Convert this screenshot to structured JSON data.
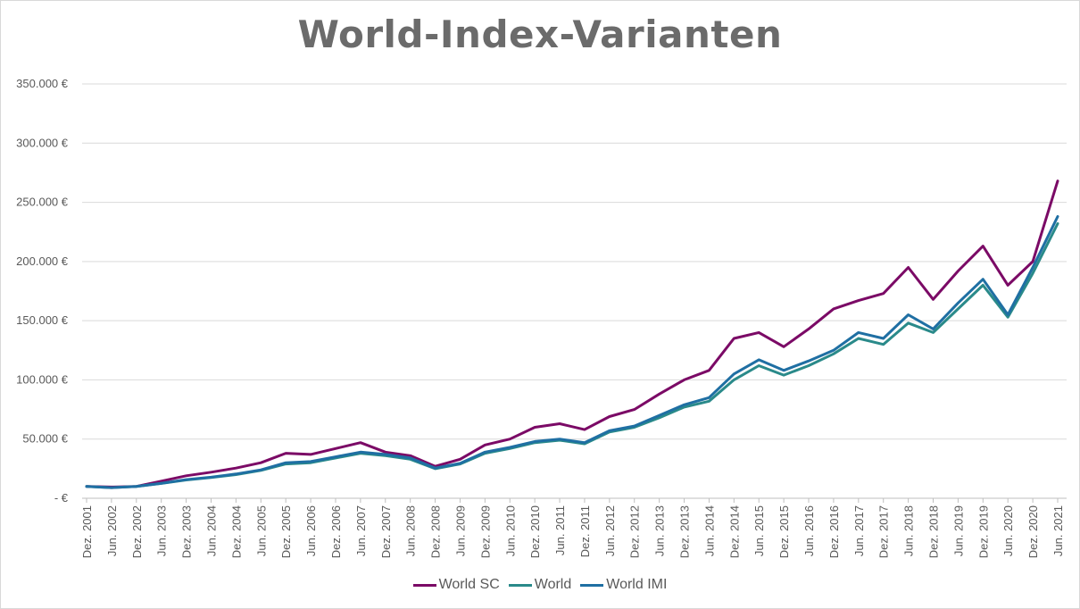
{
  "title": "World-Index-Varianten",
  "colors": {
    "world_sc": "#7b0a66",
    "world": "#2a8a8a",
    "world_imi": "#1f6fa3",
    "grid": "#d9d9d9"
  },
  "chart_data": {
    "type": "line",
    "title": "World-Index-Varianten",
    "xlabel": "",
    "ylabel": "",
    "ylim": [
      0,
      350000
    ],
    "y_tick_labels": [
      "- €",
      "50.000 €",
      "100.000 €",
      "150.000 €",
      "200.000 €",
      "250.000 €",
      "300.000 €",
      "350.000 €"
    ],
    "x_tick_labels": [
      "Dez. 2001",
      "Jun. 2002",
      "Dez. 2002",
      "Jun. 2003",
      "Dez. 2003",
      "Jun. 2004",
      "Dez. 2004",
      "Jun. 2005",
      "Dez. 2005",
      "Jun. 2006",
      "Dez. 2006",
      "Jun. 2007",
      "Dez. 2007",
      "Jun. 2008",
      "Dez. 2008",
      "Jun. 2009",
      "Dez. 2009",
      "Jun. 2010",
      "Dez. 2010",
      "Jun. 2011",
      "Dez. 2011",
      "Jun. 2012",
      "Dez. 2012",
      "Jun. 2013",
      "Dez. 2013",
      "Jun. 2014",
      "Dez. 2014",
      "Jun. 2015",
      "Dez. 2015",
      "Jun. 2016",
      "Dez. 2016",
      "Jun. 2017",
      "Dez. 2017",
      "Jun. 2018",
      "Dez. 2018",
      "Jun. 2019",
      "Dez. 2019",
      "Jun. 2020",
      "Dez. 2020",
      "Jun. 2021"
    ],
    "grid": true,
    "legend_position": "bottom",
    "x": [
      "Dez. 2001",
      "Jun. 2002",
      "Dez. 2002",
      "Jun. 2003",
      "Dez. 2003",
      "Jun. 2004",
      "Dez. 2004",
      "Jun. 2005",
      "Dez. 2005",
      "Jun. 2006",
      "Dez. 2006",
      "Jun. 2007",
      "Dez. 2007",
      "Jun. 2008",
      "Dez. 2008",
      "Jun. 2009",
      "Dez. 2009",
      "Jun. 2010",
      "Dez. 2010",
      "Jun. 2011",
      "Dez. 2011",
      "Jun. 2012",
      "Dez. 2012",
      "Jun. 2013",
      "Dez. 2013",
      "Jun. 2014",
      "Dez. 2014",
      "Jun. 2015",
      "Dez. 2015",
      "Jun. 2016",
      "Dez. 2016",
      "Jun. 2017",
      "Dez. 2017",
      "Jun. 2018",
      "Dez. 2018",
      "Jun. 2019",
      "Dez. 2019",
      "Jun. 2020",
      "Dez. 2020",
      "Jun. 2021"
    ],
    "series": [
      {
        "name": "World SC",
        "color": "#7b0a66",
        "values": [
          10000,
          9500,
          10000,
          14500,
          19000,
          22000,
          25500,
          30000,
          38000,
          37000,
          42000,
          47000,
          39000,
          36000,
          27000,
          33000,
          45000,
          50000,
          60000,
          63000,
          58000,
          69000,
          75000,
          88000,
          100000,
          108000,
          135000,
          140000,
          128000,
          143000,
          160000,
          167000,
          173000,
          195000,
          168000,
          192000,
          213000,
          180000,
          200000,
          268000
        ]
      },
      {
        "name": "World",
        "color": "#2a8a8a",
        "values": [
          10000,
          9000,
          10000,
          12500,
          15500,
          17500,
          20000,
          23500,
          29000,
          30000,
          34000,
          38000,
          36000,
          33000,
          25000,
          29000,
          38000,
          42000,
          47000,
          49000,
          46000,
          56000,
          60000,
          68000,
          77000,
          82000,
          100000,
          112000,
          104000,
          112000,
          122000,
          135000,
          130000,
          148000,
          140000,
          160000,
          180000,
          153000,
          190000,
          232000
        ]
      },
      {
        "name": "World IMI",
        "color": "#1f6fa3",
        "values": [
          10000,
          9000,
          10000,
          12700,
          15800,
          17800,
          20500,
          24000,
          30000,
          31000,
          35000,
          39000,
          37000,
          34000,
          25500,
          29500,
          39000,
          43000,
          48000,
          50000,
          47000,
          57000,
          61000,
          70000,
          79000,
          85000,
          105000,
          117000,
          108000,
          116000,
          125000,
          140000,
          135000,
          155000,
          143000,
          165000,
          185000,
          155000,
          195000,
          238000
        ]
      }
    ]
  }
}
